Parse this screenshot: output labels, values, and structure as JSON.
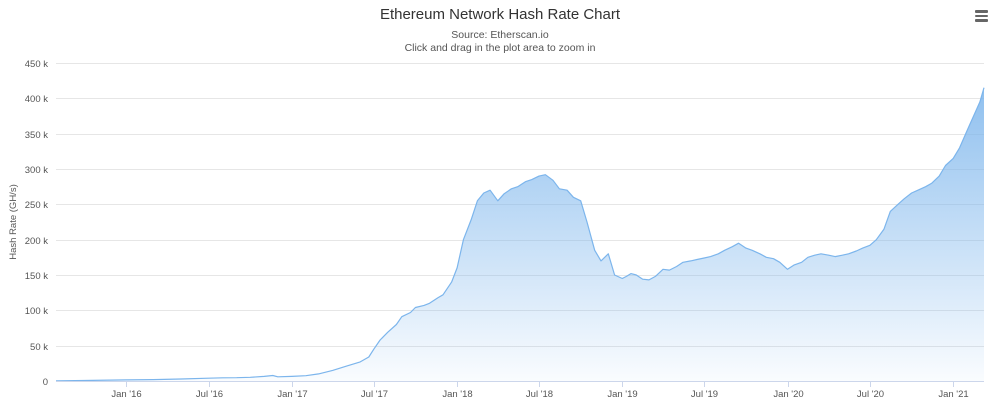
{
  "chart_data": {
    "type": "area",
    "title": "Ethereum Network Hash Rate Chart",
    "subtitle": "Source: Etherscan.io",
    "subtitle2": "Click and drag in the plot area to zoom in",
    "ylabel": "Hash Rate (GH/s)",
    "xlabel": "",
    "ylim": [
      0,
      450000
    ],
    "y_ticks": [
      {
        "value": 0,
        "label": "0"
      },
      {
        "value": 50000,
        "label": "50 k"
      },
      {
        "value": 100000,
        "label": "100 k"
      },
      {
        "value": 150000,
        "label": "150 k"
      },
      {
        "value": 200000,
        "label": "200 k"
      },
      {
        "value": 250000,
        "label": "250 k"
      },
      {
        "value": 300000,
        "label": "300 k"
      },
      {
        "value": 350000,
        "label": "350 k"
      },
      {
        "value": 400000,
        "label": "400 k"
      },
      {
        "value": 450000,
        "label": "450 k"
      }
    ],
    "xlim": [
      "2015-07-30",
      "2021-03-10"
    ],
    "x_ticks": [
      {
        "date": "2016-01-01",
        "label": "Jan '16"
      },
      {
        "date": "2016-07-01",
        "label": "Jul '16"
      },
      {
        "date": "2017-01-01",
        "label": "Jan '17"
      },
      {
        "date": "2017-07-01",
        "label": "Jul '17"
      },
      {
        "date": "2018-01-01",
        "label": "Jan '18"
      },
      {
        "date": "2018-07-01",
        "label": "Jul '18"
      },
      {
        "date": "2019-01-01",
        "label": "Jan '19"
      },
      {
        "date": "2019-07-01",
        "label": "Jul '19"
      },
      {
        "date": "2020-01-01",
        "label": "Jan '20"
      },
      {
        "date": "2020-07-01",
        "label": "Jul '20"
      },
      {
        "date": "2021-01-01",
        "label": "Jan '21"
      }
    ],
    "grid": true,
    "legend": "none",
    "colors": {
      "line": "#7cb5ec",
      "fill_top": "#7cb5ec",
      "fill_bottom": "#ffffff",
      "grid": "#e6e6e6",
      "axis": "#ccd6eb"
    },
    "series": [
      {
        "x": [
          "2015-07-30",
          "2015-10-01",
          "2016-01-01",
          "2016-03-01",
          "2016-05-01",
          "2016-07-01",
          "2016-08-01",
          "2016-09-01",
          "2016-10-01",
          "2016-11-01",
          "2016-11-20",
          "2016-12-01",
          "2017-01-01",
          "2017-02-01",
          "2017-03-01",
          "2017-04-01",
          "2017-05-01",
          "2017-06-01",
          "2017-06-20",
          "2017-07-01",
          "2017-07-15",
          "2017-08-01",
          "2017-08-20",
          "2017-09-01",
          "2017-09-20",
          "2017-10-01",
          "2017-10-20",
          "2017-11-01",
          "2017-11-20",
          "2017-12-01",
          "2017-12-20",
          "2018-01-01",
          "2018-01-15",
          "2018-02-01",
          "2018-02-15",
          "2018-03-01",
          "2018-03-15",
          "2018-04-01",
          "2018-04-15",
          "2018-05-01",
          "2018-05-15",
          "2018-06-01",
          "2018-06-15",
          "2018-07-01",
          "2018-07-15",
          "2018-08-01",
          "2018-08-15",
          "2018-09-01",
          "2018-09-15",
          "2018-10-01",
          "2018-10-15",
          "2018-11-01",
          "2018-11-15",
          "2018-12-01",
          "2018-12-15",
          "2019-01-01",
          "2019-01-10",
          "2019-01-20",
          "2019-02-01",
          "2019-02-15",
          "2019-03-01",
          "2019-03-15",
          "2019-04-01",
          "2019-04-15",
          "2019-05-01",
          "2019-05-15",
          "2019-06-01",
          "2019-06-15",
          "2019-07-01",
          "2019-07-15",
          "2019-08-01",
          "2019-08-15",
          "2019-09-01",
          "2019-09-15",
          "2019-10-01",
          "2019-10-15",
          "2019-11-01",
          "2019-11-15",
          "2019-12-01",
          "2019-12-15",
          "2020-01-01",
          "2020-01-15",
          "2020-02-01",
          "2020-02-15",
          "2020-03-01",
          "2020-03-15",
          "2020-04-01",
          "2020-04-15",
          "2020-05-01",
          "2020-05-15",
          "2020-06-01",
          "2020-06-15",
          "2020-07-01",
          "2020-07-15",
          "2020-08-01",
          "2020-08-15",
          "2020-09-01",
          "2020-09-15",
          "2020-10-01",
          "2020-10-15",
          "2020-11-01",
          "2020-11-15",
          "2020-12-01",
          "2020-12-15",
          "2021-01-01",
          "2021-01-15",
          "2021-02-01",
          "2021-02-15",
          "2021-03-01",
          "2021-03-10"
        ],
        "values": [
          200,
          700,
          1500,
          2000,
          2800,
          4000,
          4500,
          4700,
          5200,
          6500,
          7800,
          6000,
          6500,
          7500,
          10000,
          15000,
          21000,
          27000,
          34000,
          45000,
          58000,
          69000,
          80000,
          91000,
          97000,
          104000,
          107000,
          110000,
          118000,
          122000,
          140000,
          160000,
          200000,
          228000,
          255000,
          266000,
          270000,
          255000,
          265000,
          272000,
          275000,
          282000,
          285000,
          290000,
          292000,
          284000,
          272000,
          270000,
          260000,
          255000,
          225000,
          185000,
          170000,
          180000,
          150000,
          145000,
          148000,
          152000,
          150000,
          144000,
          143000,
          148000,
          158000,
          157000,
          162000,
          168000,
          170000,
          172000,
          174000,
          176000,
          180000,
          185000,
          190000,
          195000,
          188000,
          185000,
          180000,
          175000,
          173000,
          168000,
          158000,
          164000,
          168000,
          175000,
          178000,
          180000,
          178000,
          176000,
          178000,
          180000,
          184000,
          188000,
          192000,
          200000,
          215000,
          240000,
          250000,
          258000,
          266000,
          270000,
          275000,
          280000,
          290000,
          305000,
          315000,
          330000,
          355000,
          375000,
          395000,
          415000
        ]
      }
    ]
  }
}
